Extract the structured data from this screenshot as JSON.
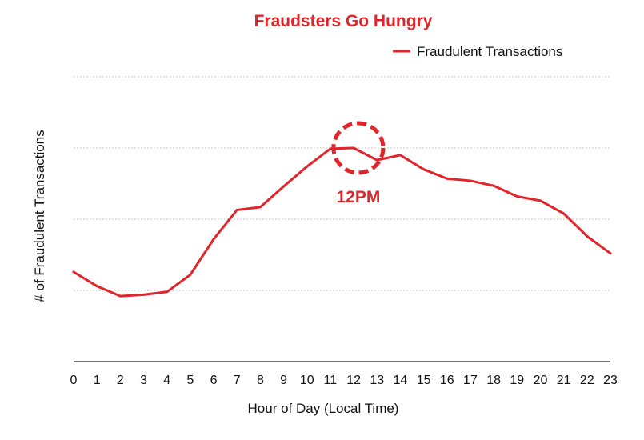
{
  "colors": {
    "series": "#e0252b",
    "title": "#e0252b",
    "grid": "#b8b8b8",
    "baseline": "#222222",
    "text": "#111111"
  },
  "chart_data": {
    "type": "line",
    "title": "Fraudsters Go Hungry",
    "xlabel": "Hour of Day (Local Time)",
    "ylabel": "# of Fraudulent Transactions",
    "x": [
      0,
      1,
      2,
      3,
      4,
      5,
      6,
      7,
      8,
      9,
      10,
      11,
      12,
      13,
      14,
      15,
      16,
      17,
      18,
      19,
      20,
      21,
      22,
      23
    ],
    "xticks": [
      "0",
      "1",
      "2",
      "3",
      "4",
      "5",
      "6",
      "7",
      "8",
      "9",
      "10",
      "11",
      "12",
      "13",
      "14",
      "15",
      "16",
      "17",
      "18",
      "19",
      "20",
      "21",
      "22",
      "23"
    ],
    "series": [
      {
        "name": "Fraudulent Transactions",
        "values": [
          1.26,
          1.06,
          0.92,
          0.94,
          0.98,
          1.22,
          1.72,
          2.13,
          2.17,
          2.46,
          2.74,
          2.99,
          3.0,
          2.83,
          2.9,
          2.7,
          2.57,
          2.54,
          2.47,
          2.32,
          2.26,
          2.08,
          1.76,
          1.52
        ]
      }
    ],
    "ylim": [
      0,
      4
    ],
    "grid": true,
    "yticks_visible": false,
    "legend": "top-right",
    "annotations": [
      {
        "text": "12PM",
        "x": 12.2,
        "y": 3.0,
        "marker": "dashed-circle"
      }
    ]
  }
}
